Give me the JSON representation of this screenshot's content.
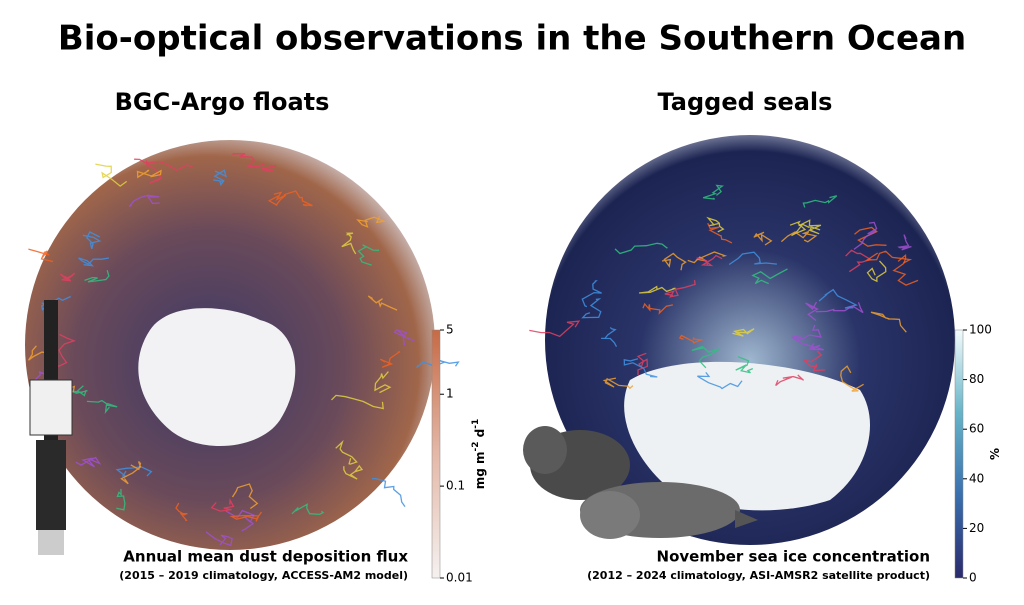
{
  "title": "Bio-optical observations in the Southern Ocean",
  "panels": [
    {
      "title": "BGC-Argo floats",
      "caption": "Annual mean dust deposition flux",
      "subcaption": "(2015 – 2019 climatology, ACCESS-AM2 model)",
      "colorbar": {
        "label_parts": [
          "mg m",
          "-2",
          " d",
          "-1"
        ],
        "scale": "log",
        "lim": [
          0.01,
          5
        ],
        "ticks": [
          0.01,
          0.1,
          1,
          5
        ],
        "colors": [
          "#f5f1f0",
          "#e4b8a8",
          "#c76a45"
        ]
      }
    },
    {
      "title": "Tagged seals",
      "caption": "November sea ice concentration",
      "subcaption": "(2012 – 2024 climatology, ASI-AMSR2 satellite product)",
      "colorbar": {
        "label_parts": [
          "%"
        ],
        "scale": "linear",
        "lim": [
          0,
          100
        ],
        "ticks": [
          0,
          20,
          40,
          60,
          80,
          100
        ],
        "colors": [
          "#2a2a6c",
          "#3a6fae",
          "#67b4c8",
          "#f3fbfc"
        ]
      }
    }
  ]
}
